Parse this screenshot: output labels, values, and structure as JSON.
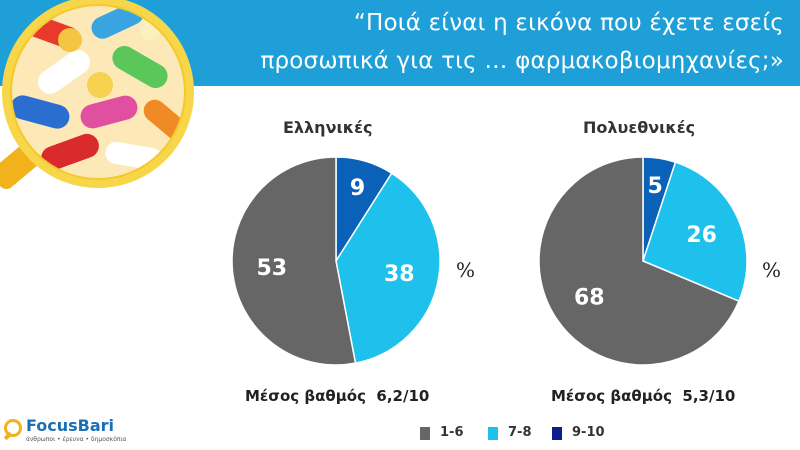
{
  "header": {
    "title_line1": "“Ποιά είναι η εικόνα που έχετε εσείς",
    "title_line2": "προσωπικά για τις … φαρμακοβιομηχανίες;»"
  },
  "colors": {
    "header_bg": "#1e9fd8",
    "series_1_6": "#666666",
    "series_7_8": "#1ec0ec",
    "series_9_10": "#0a62b8",
    "legend_9_10": "#0a1f8c"
  },
  "legend": {
    "items": [
      {
        "label": "1-6",
        "color": "#666666"
      },
      {
        "label": "7-8",
        "color": "#1ec0ec"
      },
      {
        "label": "9-10",
        "color": "#0a1f8c"
      }
    ]
  },
  "chart_data": [
    {
      "type": "pie",
      "title": "Ελληνικές",
      "unit_label": "%",
      "categories": [
        "1-6",
        "7-8",
        "9-10"
      ],
      "values": [
        53,
        38,
        9
      ],
      "footer": "Μέσος βαθμός  6,2/10"
    },
    {
      "type": "pie",
      "title": "Πολυεθνικές",
      "unit_label": "%",
      "categories": [
        "1-6",
        "7-8",
        "9-10"
      ],
      "values": [
        68,
        26,
        5
      ],
      "footer": "Μέσος βαθμός  5,3/10"
    }
  ],
  "logo": {
    "name": "FocusBari",
    "tagline": "άνθρωποι • έρευνα • δημοσκόπια"
  }
}
